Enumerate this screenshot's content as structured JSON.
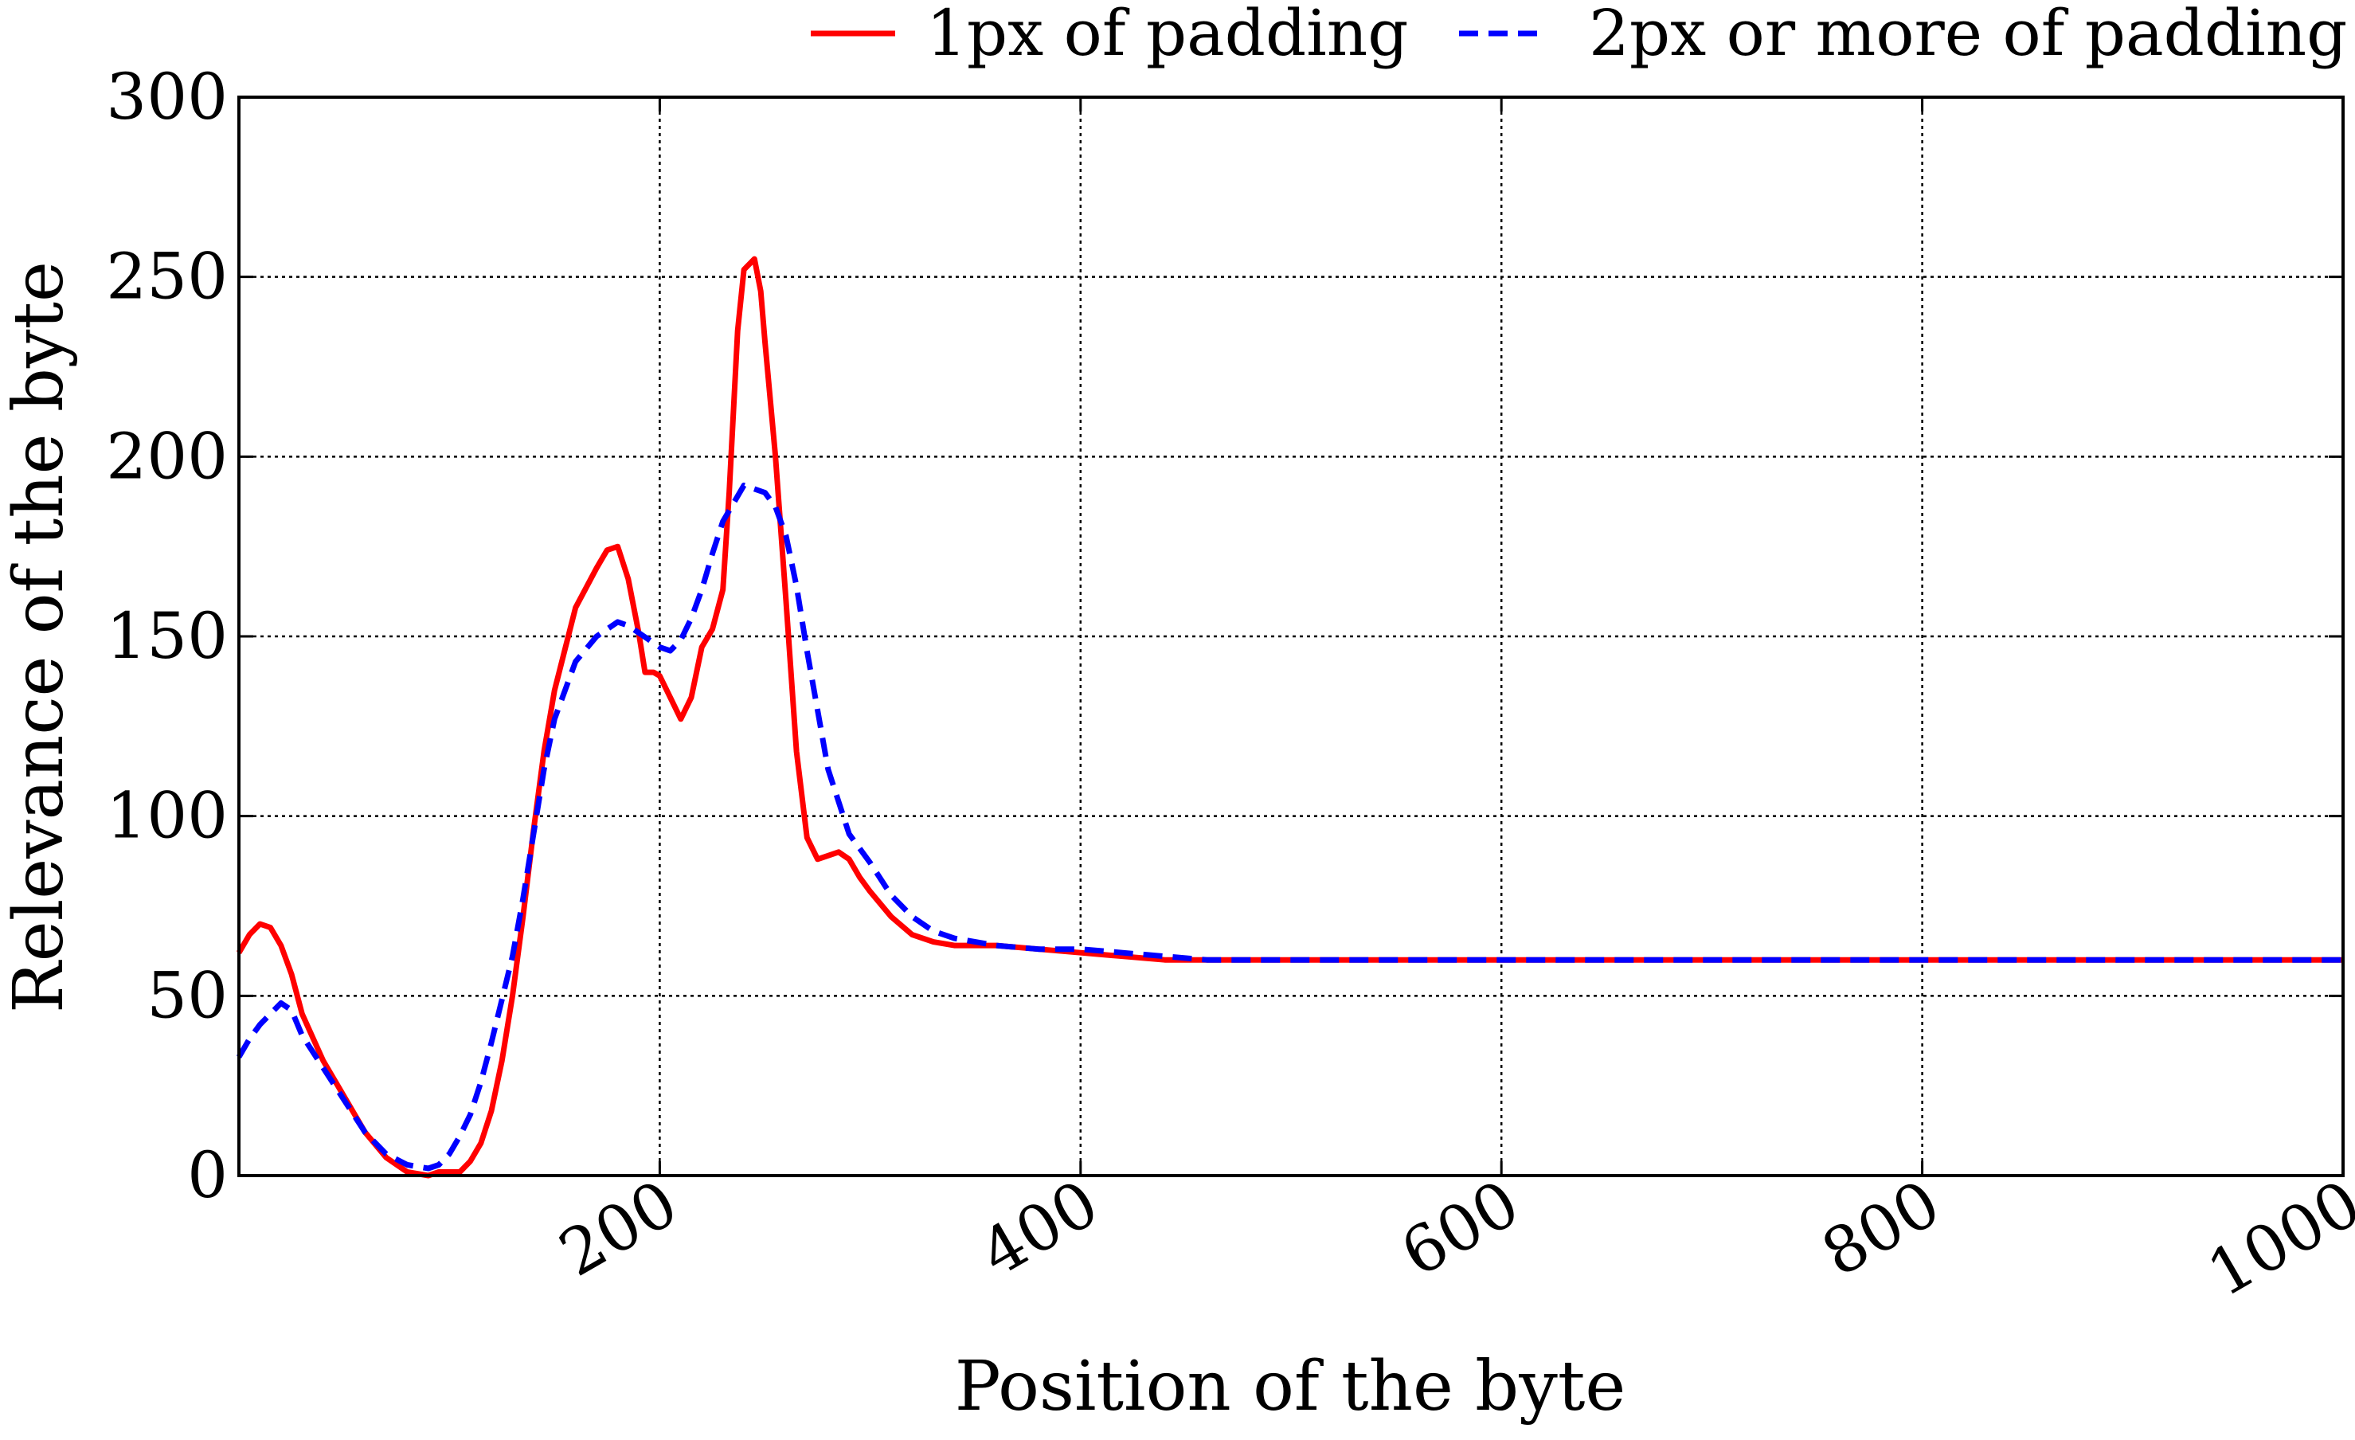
{
  "chart_data": {
    "type": "line",
    "title": "",
    "xlabel": "Position of the byte",
    "ylabel": "Relevance of the byte",
    "xlim": [
      0,
      1000
    ],
    "ylim": [
      0,
      300
    ],
    "x_ticks": [
      200,
      400,
      600,
      800,
      1000
    ],
    "y_ticks": [
      0,
      50,
      100,
      150,
      200,
      250,
      300
    ],
    "grid": true,
    "legend_position": "top, outside plot, horizontal",
    "series": [
      {
        "name": "1px of padding",
        "color": "#ff0000",
        "style": "solid",
        "x": [
          0,
          5,
          10,
          15,
          20,
          25,
          30,
          40,
          50,
          60,
          70,
          80,
          90,
          95,
          100,
          105,
          110,
          115,
          120,
          125,
          130,
          135,
          140,
          145,
          150,
          160,
          170,
          175,
          180,
          185,
          190,
          193,
          197,
          200,
          205,
          210,
          215,
          220,
          225,
          230,
          233,
          237,
          240,
          245,
          248,
          250,
          255,
          260,
          265,
          270,
          275,
          280,
          285,
          290,
          295,
          300,
          310,
          320,
          330,
          340,
          350,
          360,
          380,
          400,
          420,
          440,
          460,
          500,
          600,
          700,
          800,
          900,
          1000
        ],
        "y": [
          62,
          67,
          70,
          69,
          64,
          56,
          45,
          32,
          22,
          12,
          5,
          1,
          0,
          1,
          1,
          1,
          4,
          9,
          18,
          32,
          50,
          72,
          96,
          118,
          135,
          158,
          169,
          174,
          175,
          166,
          151,
          140,
          140,
          139,
          133,
          127,
          133,
          147,
          152,
          163,
          190,
          235,
          252,
          255,
          246,
          232,
          200,
          160,
          118,
          94,
          88,
          89,
          90,
          88,
          83,
          79,
          72,
          67,
          65,
          64,
          64,
          64,
          63,
          62,
          61,
          60,
          60,
          60,
          60,
          60,
          60,
          60,
          60
        ]
      },
      {
        "name": "2px or more of padding",
        "color": "#0000ff",
        "style": "dashed",
        "x": [
          0,
          5,
          10,
          15,
          20,
          25,
          30,
          40,
          50,
          60,
          70,
          80,
          90,
          95,
          100,
          105,
          110,
          115,
          120,
          125,
          130,
          135,
          140,
          145,
          150,
          160,
          170,
          180,
          185,
          190,
          195,
          200,
          205,
          210,
          215,
          220,
          225,
          230,
          240,
          250,
          255,
          260,
          265,
          270,
          280,
          290,
          300,
          310,
          320,
          330,
          340,
          350,
          360,
          380,
          400,
          420,
          440,
          460,
          500,
          600,
          700,
          800,
          900,
          1000
        ],
        "y": [
          33,
          38,
          42,
          45,
          48,
          46,
          39,
          30,
          21,
          12,
          6,
          3,
          2,
          3,
          6,
          11,
          17,
          26,
          37,
          49,
          61,
          77,
          95,
          113,
          127,
          143,
          150,
          154,
          153,
          151,
          149,
          147,
          146,
          149,
          155,
          163,
          173,
          182,
          192,
          190,
          186,
          178,
          164,
          146,
          113,
          95,
          87,
          78,
          72,
          68,
          66,
          65,
          64,
          63,
          63,
          62,
          61,
          60,
          60,
          60,
          60,
          60,
          60,
          60
        ]
      }
    ]
  }
}
